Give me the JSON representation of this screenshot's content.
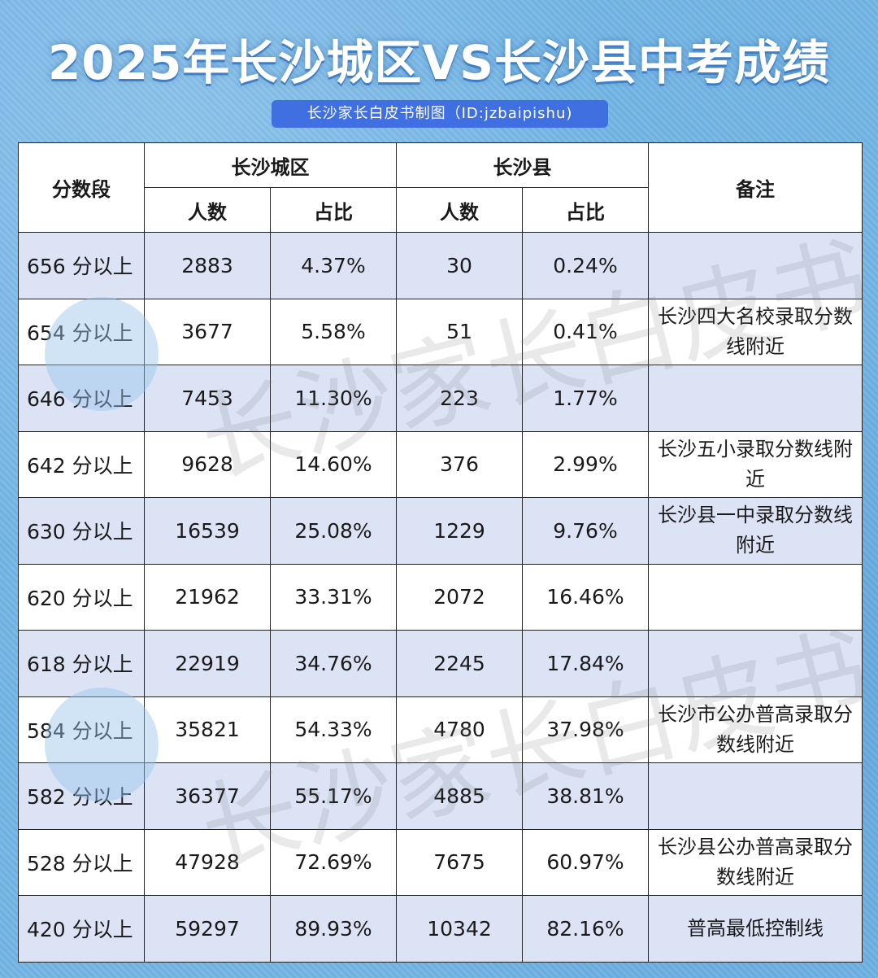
{
  "header": {
    "title": "2025年长沙城区VS长沙县中考成绩",
    "subtitle": "长沙家长白皮书制图（ID:jzbaipishu)"
  },
  "watermark": "长沙家长白皮书",
  "table": {
    "col_segment": "分数段",
    "group_city": "长沙城区",
    "group_county": "长沙县",
    "col_note": "备注",
    "sub_count": "人数",
    "sub_ratio": "占比",
    "rows": [
      {
        "segment": "656 分以上",
        "city_count": "2883",
        "city_ratio": "4.37%",
        "county_count": "30",
        "county_ratio": "0.24%",
        "note": ""
      },
      {
        "segment": "654 分以上",
        "city_count": "3677",
        "city_ratio": "5.58%",
        "county_count": "51",
        "county_ratio": "0.41%",
        "note": "长沙四大名校录取分数线附近"
      },
      {
        "segment": "646 分以上",
        "city_count": "7453",
        "city_ratio": "11.30%",
        "county_count": "223",
        "county_ratio": "1.77%",
        "note": ""
      },
      {
        "segment": "642 分以上",
        "city_count": "9628",
        "city_ratio": "14.60%",
        "county_count": "376",
        "county_ratio": "2.99%",
        "note": "长沙五小录取分数线附近"
      },
      {
        "segment": "630 分以上",
        "city_count": "16539",
        "city_ratio": "25.08%",
        "county_count": "1229",
        "county_ratio": "9.76%",
        "note": "长沙县一中录取分数线附近"
      },
      {
        "segment": "620 分以上",
        "city_count": "21962",
        "city_ratio": "33.31%",
        "county_count": "2072",
        "county_ratio": "16.46%",
        "note": ""
      },
      {
        "segment": "618 分以上",
        "city_count": "22919",
        "city_ratio": "34.76%",
        "county_count": "2245",
        "county_ratio": "17.84%",
        "note": ""
      },
      {
        "segment": "584 分以上",
        "city_count": "35821",
        "city_ratio": "54.33%",
        "county_count": "4780",
        "county_ratio": "37.98%",
        "note": "长沙市公办普高录取分数线附近"
      },
      {
        "segment": "582 分以上",
        "city_count": "36377",
        "city_ratio": "55.17%",
        "county_count": "4885",
        "county_ratio": "38.81%",
        "note": ""
      },
      {
        "segment": "528 分以上",
        "city_count": "47928",
        "city_ratio": "72.69%",
        "county_count": "7675",
        "county_ratio": "60.97%",
        "note": "长沙县公办普高录取分数线附近"
      },
      {
        "segment": "420 分以上",
        "city_count": "59297",
        "city_ratio": "89.93%",
        "county_count": "10342",
        "county_ratio": "82.16%",
        "note": "普高最低控制线"
      }
    ]
  }
}
